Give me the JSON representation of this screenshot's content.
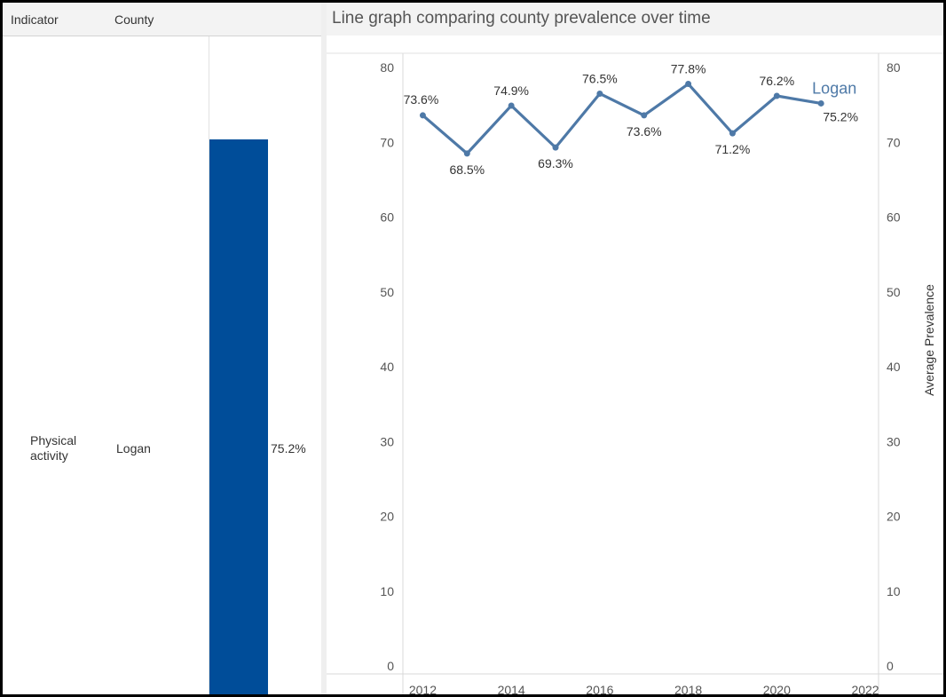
{
  "table": {
    "headers": {
      "indicator": "Indicator",
      "county": "County"
    },
    "row": {
      "indicator": "Physical activity",
      "county": "Logan",
      "value": "75.2%",
      "value_numeric": 75.2
    },
    "bar_color": "#004d99"
  },
  "chart_title": "Line graph comparing county prevalence over time",
  "chart_data": {
    "type": "line",
    "title": "Line graph comparing county prevalence over time",
    "xlabel": "",
    "ylabel": "Average Prevalence",
    "x": [
      2012,
      2013,
      2014,
      2015,
      2016,
      2017,
      2018,
      2019,
      2020,
      2021
    ],
    "series": [
      {
        "name": "Logan",
        "color": "#4e79a7",
        "values": [
          73.6,
          68.5,
          74.9,
          69.3,
          76.5,
          73.6,
          77.8,
          71.2,
          76.2,
          75.2
        ],
        "labels": [
          "73.6%",
          "68.5%",
          "74.9%",
          "69.3%",
          "76.5%",
          "73.6%",
          "77.8%",
          "71.2%",
          "76.2%",
          "75.2%"
        ]
      }
    ],
    "xlim": [
      2011.55,
      2022.3
    ],
    "ylim": [
      0,
      80
    ],
    "x_ticks": [
      "2012",
      "2014",
      "2016",
      "2018",
      "2020",
      "2022"
    ],
    "y_ticks": [
      "0",
      "10",
      "20",
      "30",
      "40",
      "50",
      "60",
      "70",
      "80"
    ],
    "grid": false,
    "legend": "none"
  }
}
